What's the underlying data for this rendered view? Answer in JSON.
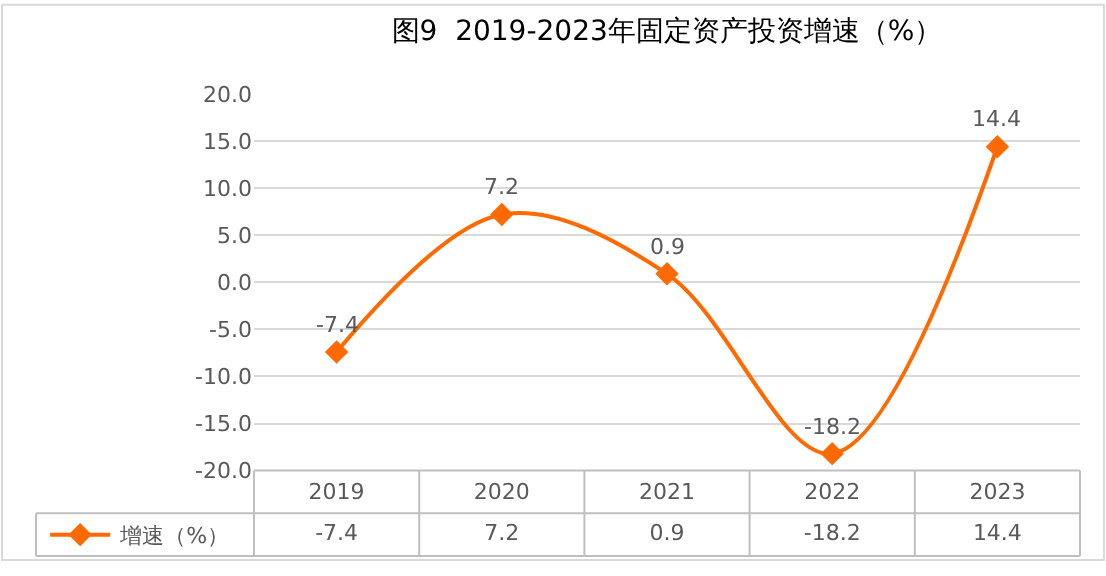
{
  "chart_data": {
    "type": "line",
    "title": "图9  2019-2023年固定资产投资增速（%）",
    "categories": [
      "2019",
      "2020",
      "2021",
      "2022",
      "2023"
    ],
    "series": [
      {
        "name": "增速（%）",
        "color": "#ff6a00",
        "values": [
          -7.4,
          7.2,
          0.9,
          -18.2,
          14.4
        ]
      }
    ],
    "annotations": [
      {
        "text": "-7.4",
        "x": "2019",
        "y": -7.4
      },
      {
        "text": "7.2",
        "x": "2020",
        "y": 7.2
      },
      {
        "text": "0.9",
        "x": "2021",
        "y": 0.9
      },
      {
        "text": "-18.2",
        "x": "2022",
        "y": -18.2
      },
      {
        "text": "14.4",
        "x": "2023",
        "y": 14.4
      }
    ],
    "ylim": [
      -20,
      20
    ],
    "yticks": [
      {
        "value": -20,
        "label": "-20.0"
      },
      {
        "value": -15,
        "label": "-15.0"
      },
      {
        "value": -10,
        "label": "-10.0"
      },
      {
        "value": -5,
        "label": "-5.0"
      },
      {
        "value": 0,
        "label": "0.0"
      },
      {
        "value": 5,
        "label": "5.0"
      },
      {
        "value": 10,
        "label": "10.0"
      },
      {
        "value": 15,
        "label": "15.0"
      },
      {
        "value": 20,
        "label": "20.0"
      }
    ],
    "grid": "y",
    "marker": "diamond",
    "line_style": "solid",
    "data_labels": true,
    "legend": "bottom left"
  }
}
